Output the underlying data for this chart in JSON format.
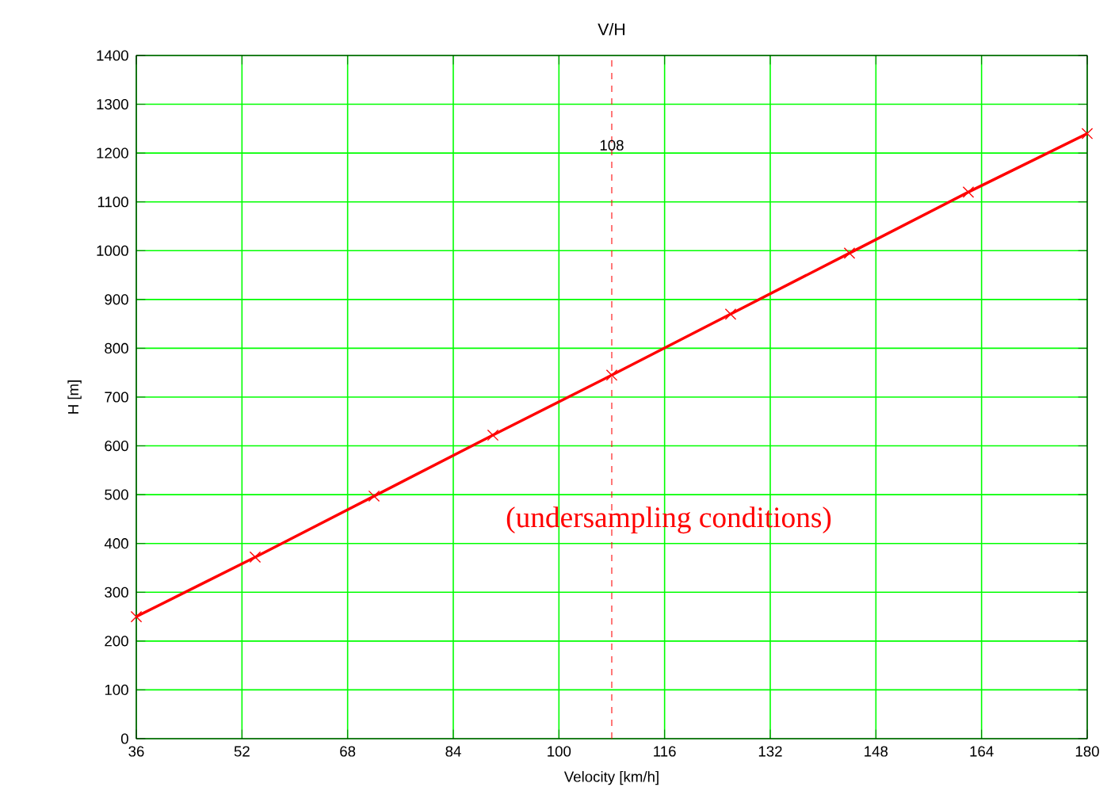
{
  "chart_data": {
    "type": "line",
    "title": "V/H",
    "xlabel": "Velocity [km/h]",
    "ylabel": "H [m]",
    "x": [
      36,
      54,
      72,
      90,
      108,
      126,
      144,
      162,
      180
    ],
    "series": [
      {
        "color": "#ff0000",
        "values": [
          250,
          372,
          497,
          622,
          745,
          870,
          995,
          1120,
          1240
        ]
      }
    ],
    "xlim": [
      36,
      180
    ],
    "ylim": [
      0,
      1400
    ],
    "xticks": [
      36,
      52,
      68,
      84,
      100,
      116,
      132,
      148,
      164,
      180
    ],
    "yticks": [
      0,
      100,
      200,
      300,
      400,
      500,
      600,
      700,
      800,
      900,
      1000,
      1100,
      1200,
      1300,
      1400
    ],
    "grid": true,
    "marker": "cross",
    "line_style": "solid",
    "ref_lines": [
      {
        "axis": "x",
        "value": 108,
        "label": "108",
        "color": "#ff0000",
        "line_style": "dashed"
      }
    ],
    "annotations": [
      "(undersampling conditions)"
    ]
  }
}
